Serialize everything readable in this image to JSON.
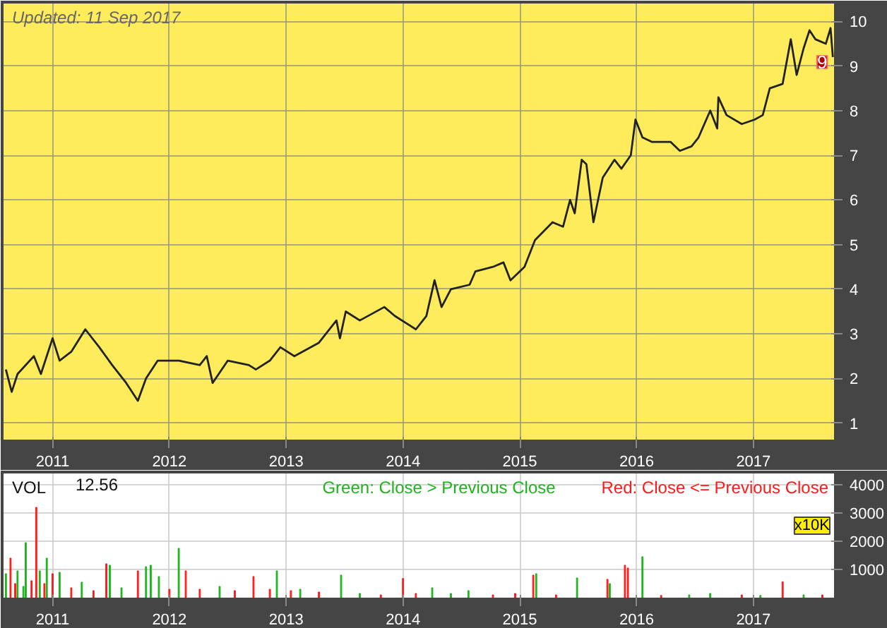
{
  "chart_data": [
    {
      "type": "line",
      "annotations": [
        "Updated: 11 Sep 2017",
        "9"
      ],
      "xlim": [
        2010.58,
        2017.69
      ],
      "xticks": [
        2011,
        2012,
        2013,
        2014,
        2015,
        2016,
        2017
      ],
      "ylim": [
        0.63,
        10.4
      ],
      "yticks": [
        1,
        2,
        3,
        4,
        5,
        6,
        7,
        8,
        9,
        10
      ],
      "grid": true,
      "line_style": "solid",
      "series": [
        {
          "color": "#222222",
          "x": [
            2010.6,
            2010.65,
            2010.7,
            2010.84,
            2010.9,
            2011.0,
            2011.06,
            2011.16,
            2011.28,
            2011.4,
            2011.51,
            2011.63,
            2011.73,
            2011.8,
            2011.9,
            2012.08,
            2012.26,
            2012.32,
            2012.37,
            2012.5,
            2012.68,
            2012.74,
            2012.86,
            2012.95,
            2013.07,
            2013.28,
            2013.43,
            2013.46,
            2013.51,
            2013.63,
            2013.84,
            2013.93,
            2014.05,
            2014.11,
            2014.2,
            2014.27,
            2014.33,
            2014.41,
            2014.57,
            2014.62,
            2014.77,
            2014.86,
            2014.92,
            2015.04,
            2015.13,
            2015.28,
            2015.37,
            2015.43,
            2015.47,
            2015.53,
            2015.57,
            2015.63,
            2015.67,
            2015.71,
            2015.81,
            2015.87,
            2015.95,
            2015.99,
            2016.05,
            2016.13,
            2016.29,
            2016.37,
            2016.47,
            2016.53,
            2016.63,
            2016.69,
            2016.7,
            2016.77,
            2016.9,
            2017.01,
            2017.08,
            2017.14,
            2017.25,
            2017.32,
            2017.37,
            2017.43,
            2017.48,
            2017.53,
            2017.62,
            2017.66,
            2017.68
          ],
          "values": [
            2.2,
            1.7,
            2.1,
            2.5,
            2.1,
            2.9,
            2.4,
            2.6,
            3.1,
            2.7,
            2.3,
            1.9,
            1.5,
            2.0,
            2.4,
            2.4,
            2.3,
            2.5,
            1.9,
            2.4,
            2.3,
            2.2,
            2.4,
            2.7,
            2.5,
            2.8,
            3.3,
            2.9,
            3.5,
            3.3,
            3.6,
            3.4,
            3.2,
            3.1,
            3.4,
            4.2,
            3.6,
            4.0,
            4.1,
            4.4,
            4.5,
            4.6,
            4.2,
            4.5,
            5.1,
            5.5,
            5.4,
            6.0,
            5.7,
            6.9,
            6.8,
            5.5,
            6.0,
            6.5,
            6.9,
            6.7,
            7.0,
            7.8,
            7.4,
            7.3,
            7.3,
            7.1,
            7.2,
            7.4,
            8.0,
            7.6,
            8.3,
            7.9,
            7.7,
            7.8,
            7.9,
            8.5,
            8.6,
            9.6,
            8.8,
            9.4,
            9.8,
            9.6,
            9.5,
            9.85,
            9.2
          ]
        }
      ]
    },
    {
      "type": "bar",
      "annotations": [
        "VOL",
        "12.56"
      ],
      "ylabel": "x10K",
      "xlim": [
        2010.58,
        2017.69
      ],
      "xticks": [
        2011,
        2012,
        2013,
        2014,
        2015,
        2016,
        2017
      ],
      "ylim": [
        0,
        4400
      ],
      "yticks": [
        1000,
        2000,
        3000,
        4000
      ],
      "grid": true,
      "legend": "top right",
      "series": [
        {
          "name": "Green: Close > Previous Close",
          "color": "#1db41d",
          "x": [
            2010.6,
            2010.7,
            2010.75,
            2010.77,
            2010.89,
            2010.95,
            2011.06,
            2011.25,
            2011.49,
            2011.59,
            2011.8,
            2011.84,
            2011.91,
            2012.08,
            2012.43,
            2012.92,
            2013.12,
            2013.47,
            2013.63,
            2014.25,
            2014.41,
            2014.56,
            2015.14,
            2015.49,
            2015.77,
            2016.05,
            2016.45,
            2016.63,
            2017.06,
            2017.43
          ],
          "values": [
            850,
            950,
            400,
            1950,
            950,
            1400,
            900,
            550,
            1150,
            350,
            1100,
            1150,
            750,
            1750,
            400,
            950,
            300,
            800,
            150,
            350,
            150,
            250,
            850,
            700,
            500,
            1450,
            100,
            150,
            80,
            100
          ]
        },
        {
          "name": "Red: Close <= Previous Close",
          "color": "#ff1a1a",
          "x": [
            2010.64,
            2010.68,
            2010.82,
            2010.86,
            2010.93,
            2011.0,
            2011.16,
            2011.35,
            2011.46,
            2011.73,
            2012.0,
            2012.14,
            2012.26,
            2012.56,
            2012.72,
            2012.86,
            2013.04,
            2013.28,
            2013.81,
            2014.0,
            2014.11,
            2014.77,
            2014.96,
            2015.115,
            2015.31,
            2015.75,
            2015.9,
            2015.925,
            2016.21,
            2016.9,
            2017.25,
            2017.59
          ],
          "values": [
            1400,
            500,
            600,
            3200,
            500,
            850,
            350,
            250,
            1200,
            950,
            300,
            950,
            300,
            250,
            750,
            300,
            250,
            200,
            100,
            680,
            150,
            100,
            150,
            800,
            100,
            650,
            1150,
            1050,
            80,
            100,
            560,
            100
          ]
        }
      ]
    }
  ]
}
